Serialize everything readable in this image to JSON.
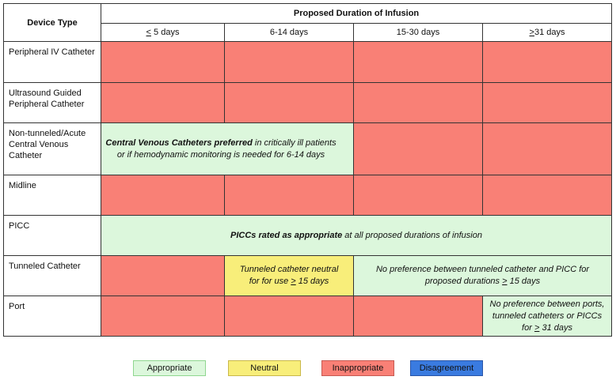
{
  "header": {
    "device_type": "Device Type",
    "proposed_duration": "Proposed Duration of Infusion",
    "durations": [
      {
        "prefix": "<",
        "rest": " 5 days"
      },
      {
        "prefix": "",
        "rest": "6-14 days"
      },
      {
        "prefix": "",
        "rest": "15-30 days"
      },
      {
        "prefix": ">",
        "rest": "31 days"
      }
    ]
  },
  "rows": {
    "peripheral_iv": "Peripheral IV Catheter",
    "ultrasound": "Ultrasound Guided Peripheral Catheter",
    "non_tunneled": "Non-tunneled/Acute Central Venous Catheter",
    "midline": "Midline",
    "picc": "PICC",
    "tunneled": "Tunneled Catheter",
    "port": "Port"
  },
  "notes": {
    "cvc_bold": "Central Venous Catheters preferred",
    "cvc_rest": " in critically ill patients or if hemodynamic monitoring is needed for 6-14 days",
    "picc_bold": "PICCs rated as appropriate",
    "picc_rest": " at all proposed durations of infusion",
    "tunneled_neutral_a": "Tunneled catheter neutral for for use ",
    "tunneled_neutral_ge": ">",
    "tunneled_neutral_b": " 15 days",
    "tunneled_nopref_a": "No preference between tunneled catheter and PICC for proposed durations ",
    "tunneled_nopref_ge": ">",
    "tunneled_nopref_b": " 15 days",
    "port_nopref_a": "No preference between ports, tunneled catheters or PICCs for ",
    "port_nopref_ge": ">",
    "port_nopref_b": " 31 days"
  },
  "legend": [
    {
      "label": "Appropriate",
      "color": "#dcf7dc",
      "border": "#8fd68f"
    },
    {
      "label": "Neutral",
      "color": "#f8ee7a",
      "border": "#c9b84a"
    },
    {
      "label": "Inappropriate",
      "color": "#f98076",
      "border": "#c65a52"
    },
    {
      "label": "Disagreement",
      "color": "#3a7be0",
      "border": "#2a56a8"
    }
  ],
  "colors": {
    "appropriate": "#dcf7dc",
    "neutral": "#f8ee7a",
    "inappropriate": "#f98076",
    "disagreement": "#3a7be0"
  }
}
